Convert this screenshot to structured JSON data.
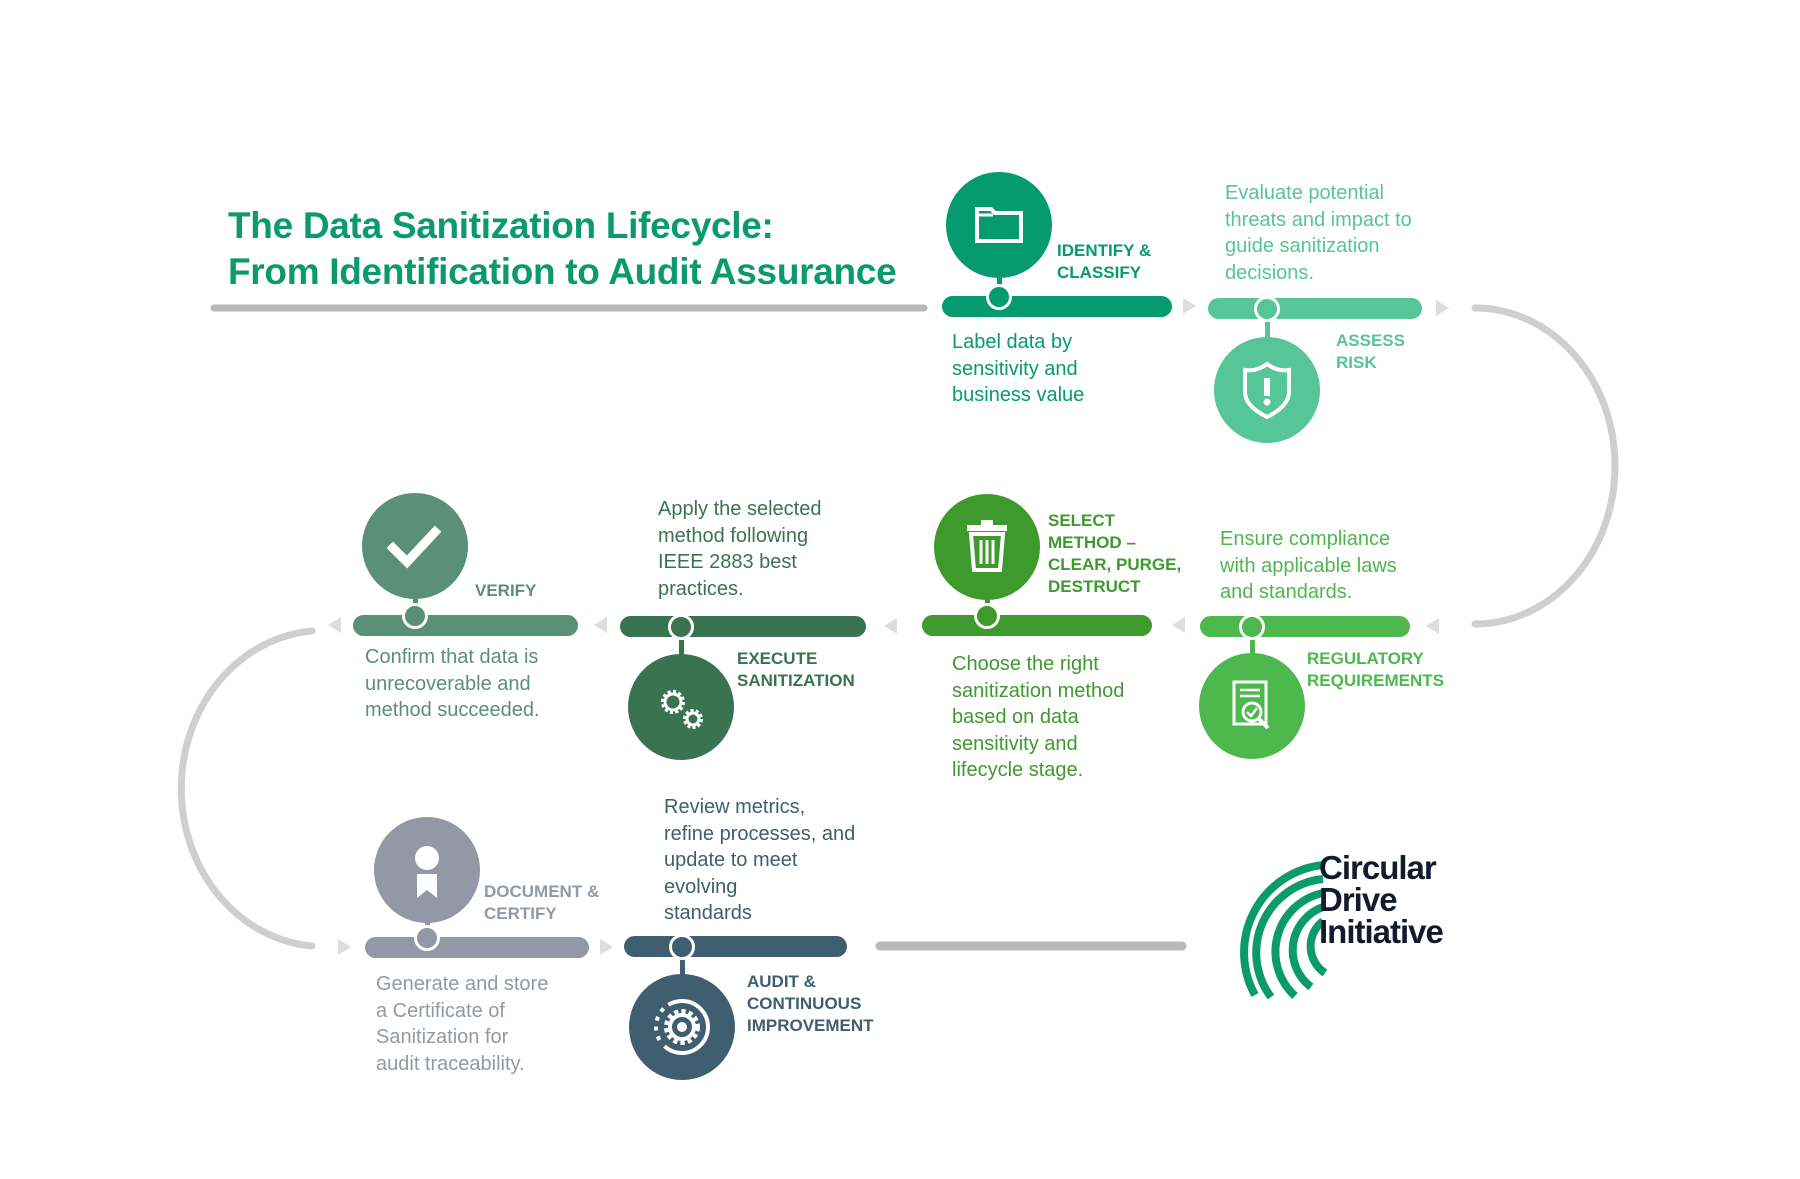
{
  "title": "The Data Sanitization Lifecycle:\nFrom Identification to Audit Assurance",
  "title_color": "#0b9a6e",
  "steps": [
    {
      "label": "IDENTIFY &\nCLASSIFY",
      "description": "Label data by\nsensitivity and\nbusiness value",
      "color": "#069a70",
      "icon": "folder-icon"
    },
    {
      "label": "ASSESS\nRISK",
      "description": "Evaluate potential\nthreats and impact to\nguide sanitization\ndecisions.",
      "color": "#56c597",
      "icon": "shield-alert-icon"
    },
    {
      "label": "REGULATORY\nREQUIREMENTS",
      "description": "Ensure compliance\nwith applicable laws\nand standards.",
      "color": "#4cb84e",
      "icon": "document-check-icon"
    },
    {
      "label": "SELECT\nMETHOD –\nCLEAR, PURGE,\nDESTRUCT",
      "description": "Choose the right\nsanitization method\nbased on data\nsensitivity and\nlifecycle stage.",
      "color": "#3f9a2e",
      "icon": "trash-icon"
    },
    {
      "label": "EXECUTE\nSANITIZATION",
      "description": "Apply the selected\nmethod following\nIEEE 2883 best\npractices.",
      "color": "#3a7350",
      "icon": "gears-icon"
    },
    {
      "label": "VERIFY",
      "description": "Confirm that data is\nunrecoverable and\nmethod succeeded.",
      "color": "#5a9079",
      "icon": "checkmark-icon"
    },
    {
      "label": "DOCUMENT &\nCERTIFY",
      "description": "Generate and store\na Certificate of\nSanitization for\naudit traceability.",
      "color": "#9298a6",
      "icon": "certificate-icon"
    },
    {
      "label": "AUDIT &\nCONTINUOUS\nIMPROVEMENT",
      "description": "Review metrics,\nrefine processes, and\nupdate to meet\nevolving\nstandards",
      "color": "#3f5e70",
      "icon": "gear-cycle-icon"
    }
  ],
  "logo": {
    "text": "Circular\nDrive\nInitiative",
    "color": "#0a9a6c",
    "text_color": "#141a2e"
  },
  "connector_color": "#c8c8c8"
}
